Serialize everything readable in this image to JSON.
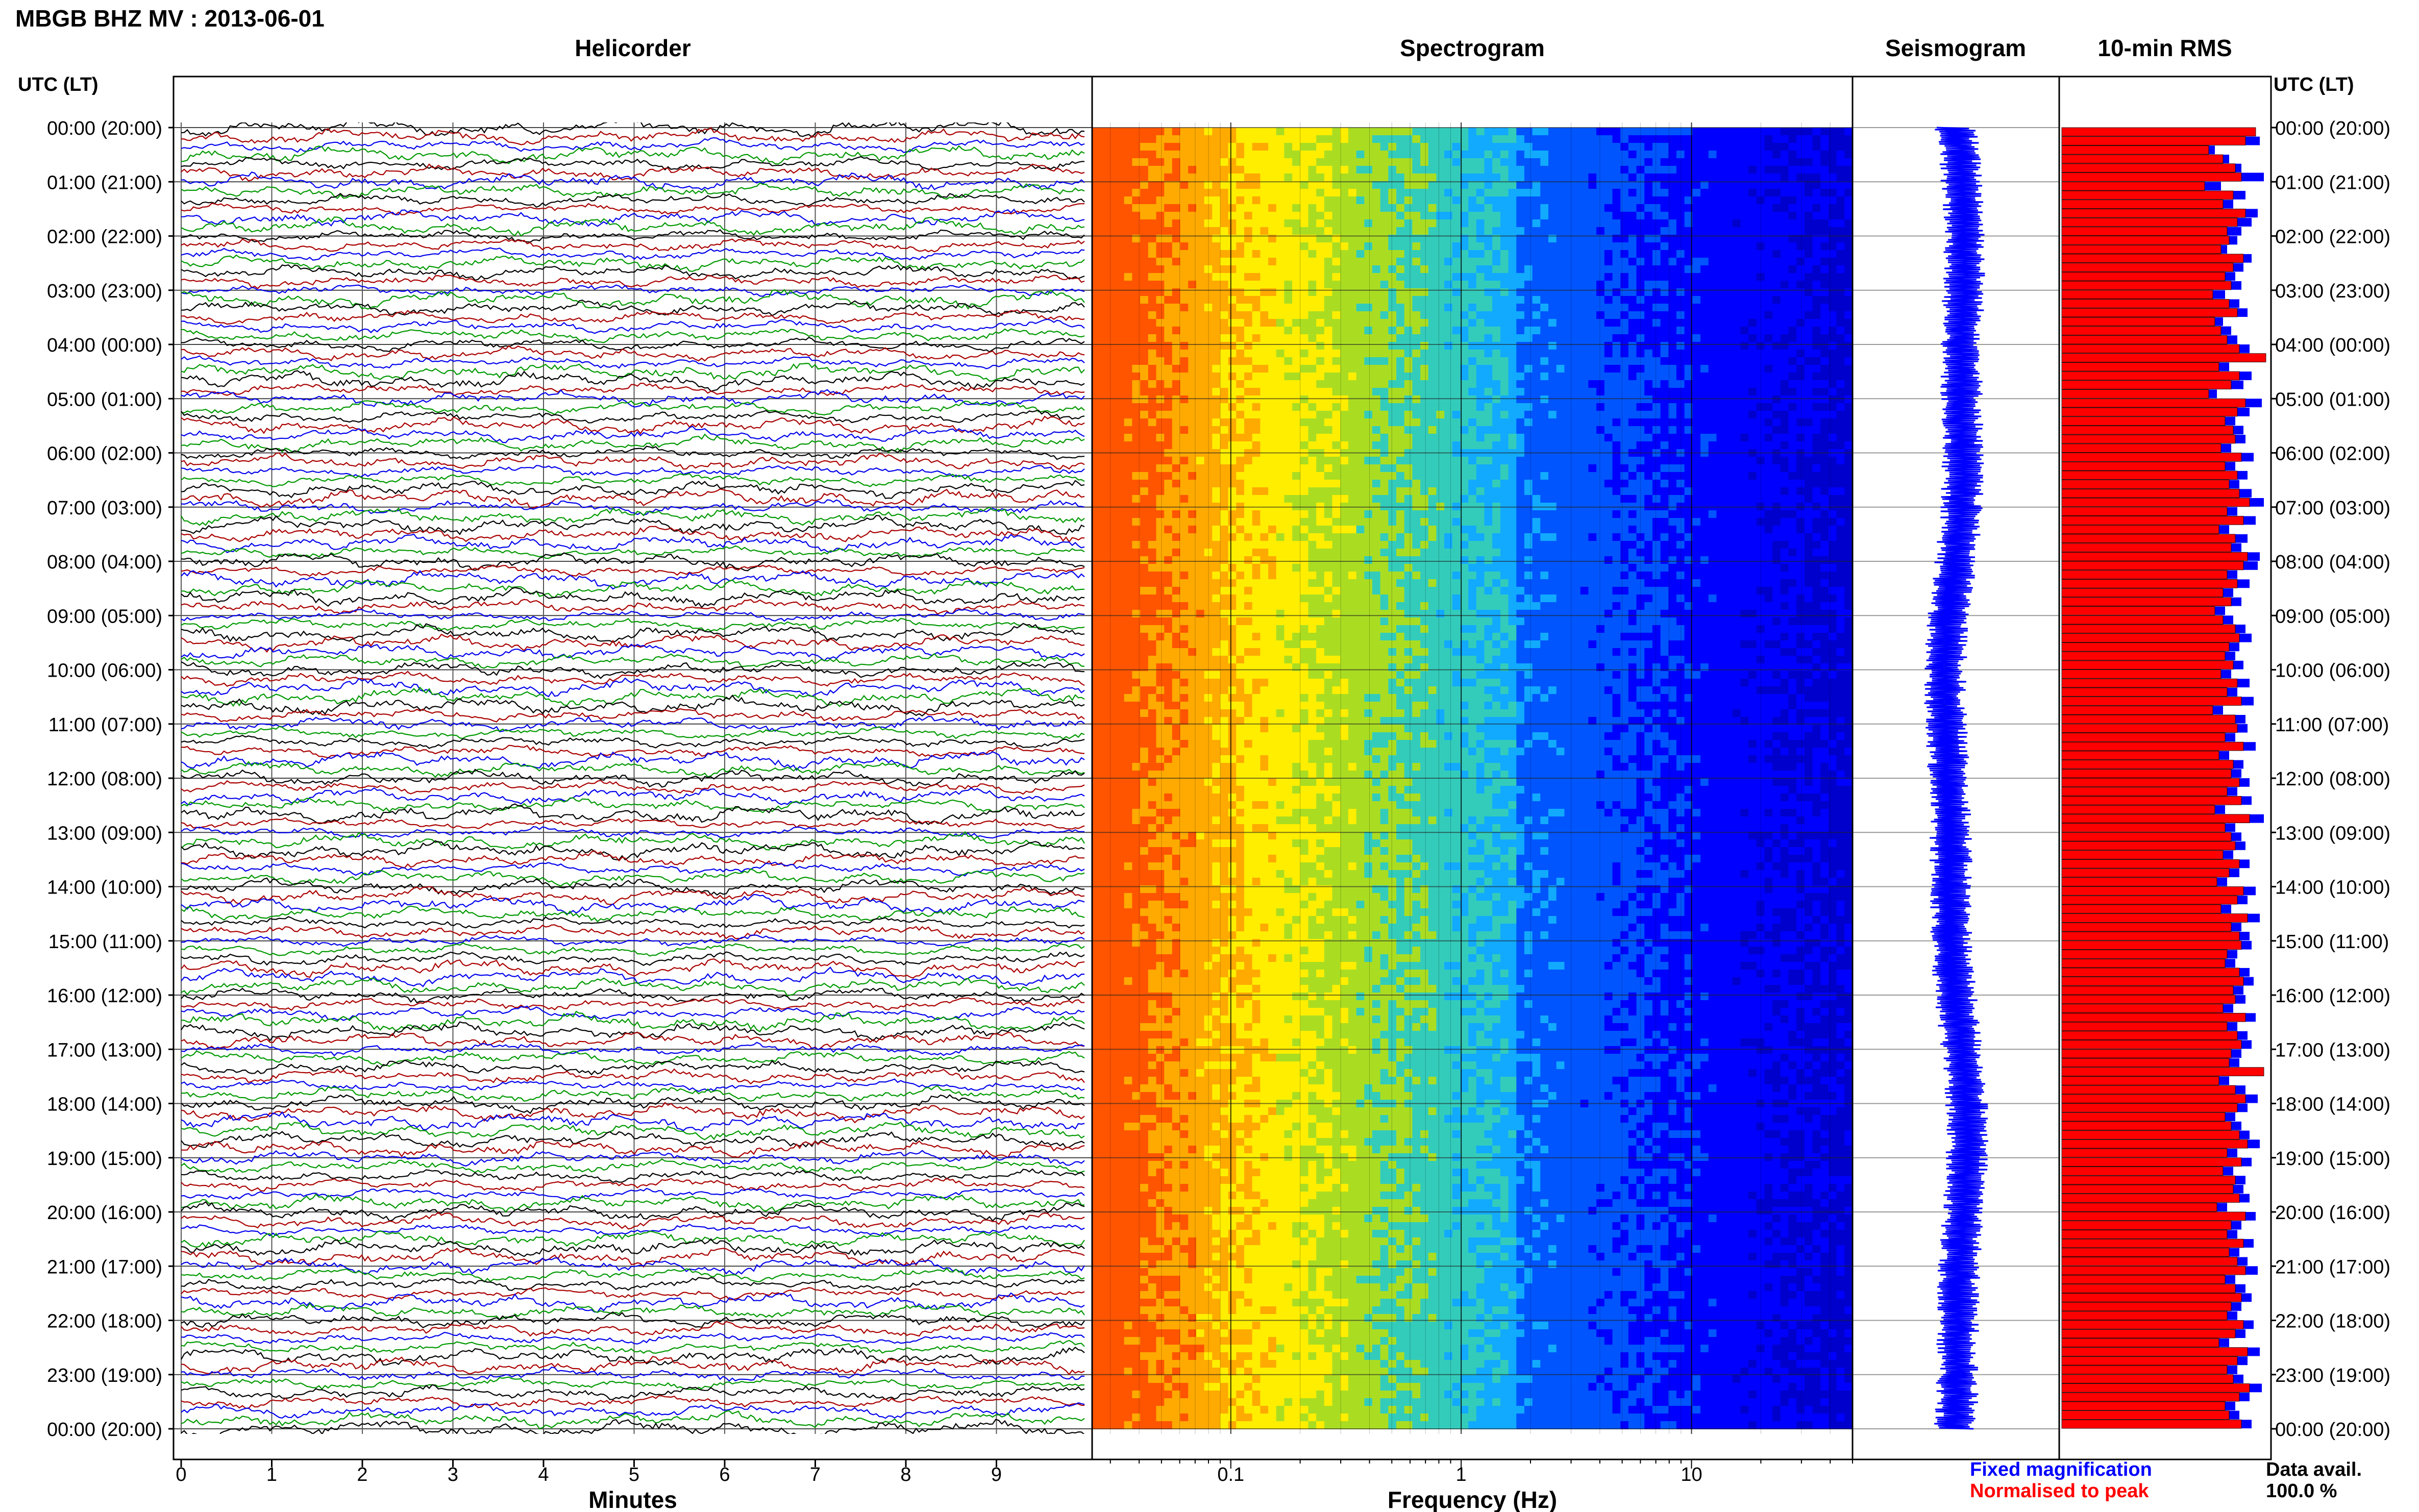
{
  "header": {
    "station_title": "MBGB BHZ MV : 2013-06-01"
  },
  "panels": {
    "helicorder_title": "Helicorder",
    "spectrogram_title": "Spectrogram",
    "seismogram_title": "Seismogram",
    "rms_title": "10-min RMS"
  },
  "time_axis": {
    "label_left": "UTC (LT)",
    "label_right": "UTC (LT)",
    "ticks": [
      "00:00 (20:00)",
      "01:00 (21:00)",
      "02:00 (22:00)",
      "03:00 (23:00)",
      "04:00 (00:00)",
      "05:00 (01:00)",
      "06:00 (02:00)",
      "07:00 (03:00)",
      "08:00 (04:00)",
      "09:00 (05:00)",
      "10:00 (06:00)",
      "11:00 (07:00)",
      "12:00 (08:00)",
      "13:00 (09:00)",
      "14:00 (10:00)",
      "15:00 (11:00)",
      "16:00 (12:00)",
      "17:00 (13:00)",
      "18:00 (14:00)",
      "19:00 (15:00)",
      "20:00 (16:00)",
      "21:00 (17:00)",
      "22:00 (18:00)",
      "23:00 (19:00)",
      "00:00 (20:00)"
    ]
  },
  "legend": {
    "fixed_label": "Fixed magnification",
    "normalised_label": "Normalised to peak",
    "fixed_color": "#0000ff",
    "normalised_color": "#ff0000",
    "avail_label": "Data avail.",
    "avail_value": "100.0 %"
  },
  "chart_data": [
    {
      "type": "line",
      "name": "helicorder",
      "title": "Helicorder",
      "xlabel": "Minutes",
      "xlim": [
        0,
        10
      ],
      "xticks": [
        0,
        1,
        2,
        3,
        4,
        5,
        6,
        7,
        8,
        9
      ],
      "ylabel": "UTC (LT)",
      "ylim_hours": [
        0,
        24
      ],
      "traces_per_hour": 6,
      "trace_colors": [
        "#000000",
        "#aa0000",
        "#0000ee",
        "#009900"
      ],
      "grid": true
    },
    {
      "type": "heatmap",
      "name": "spectrogram",
      "title": "Spectrogram",
      "xlabel": "Frequency (Hz)",
      "xscale": "log",
      "xlim": [
        0.025,
        50
      ],
      "xticks": [
        0.1,
        1,
        10
      ],
      "xtick_labels": [
        "0.1",
        "1",
        "10"
      ],
      "ylim_hours": [
        0,
        24
      ],
      "colormap": [
        "#ff5500",
        "#ffaa00",
        "#ffee00",
        "#aadd22",
        "#33ccbb",
        "#11aaff",
        "#0055ff",
        "#0000ff",
        "#0000cc"
      ],
      "grid": true
    },
    {
      "type": "line",
      "name": "seismogram",
      "title": "Seismogram",
      "ylim_hours": [
        0,
        24
      ],
      "color": "#0000ff"
    },
    {
      "type": "bar",
      "name": "rms",
      "title": "10-min RMS",
      "orientation": "horizontal",
      "ylim_hours": [
        0,
        24
      ],
      "bins_per_hour": 6,
      "series": [
        {
          "name": "Fixed magnification",
          "color": "#0000ff",
          "values": [
            0.92,
            0.97,
            0.75,
            0.82,
            0.88,
            0.99,
            0.78,
            0.9,
            0.84,
            0.96,
            0.93,
            0.88,
            0.86,
            0.81,
            0.93,
            0.89,
            0.85,
            0.88,
            0.8,
            0.87,
            0.91,
            0.79,
            0.83,
            0.86,
            0.92,
            0.95,
            0.82,
            0.93,
            0.89,
            0.76,
            0.98,
            0.92,
            0.85,
            0.89,
            0.9,
            0.83,
            0.94,
            0.85,
            0.91,
            0.87,
            0.93,
            0.99,
            0.86,
            0.95,
            0.82,
            0.91,
            0.88,
            0.97,
            0.96,
            0.86,
            0.92,
            0.84,
            0.88,
            0.8,
            0.84,
            0.9,
            0.93,
            0.87,
            0.85,
            0.89,
            0.83,
            0.92,
            0.86,
            0.94,
            0.79,
            0.9,
            0.91,
            0.85,
            0.95,
            0.82,
            0.89,
            0.88,
            0.92,
            0.86,
            0.93,
            0.8,
            0.99,
            0.85,
            0.88,
            0.9,
            0.84,
            0.92,
            0.87,
            0.81,
            0.95,
            0.91,
            0.83,
            0.97,
            0.88,
            0.92,
            0.93,
            0.86,
            0.85,
            0.92,
            0.94,
            0.89,
            0.9,
            0.84,
            0.95,
            0.86,
            0.91,
            0.93,
            0.88,
            0.87,
            0.95,
            0.82,
            0.9,
            0.96,
            0.91,
            0.85,
            0.88,
            0.92,
            0.97,
            0.86,
            0.93,
            0.84,
            0.9,
            0.89,
            0.92,
            0.81,
            0.95,
            0.88,
            0.86,
            0.94,
            0.87,
            0.91,
            0.96,
            0.85,
            0.9,
            0.93,
            0.88,
            0.86,
            0.94,
            0.9,
            0.82,
            0.97,
            0.91,
            0.86,
            0.89,
            0.98,
            0.92,
            0.85,
            0.87,
            0.93
          ]
        },
        {
          "name": "Normalised to peak",
          "color": "#ff0000",
          "values": [
            0.95,
            0.9,
            0.72,
            0.79,
            0.85,
            0.88,
            0.7,
            0.84,
            0.79,
            0.9,
            0.86,
            0.81,
            0.82,
            0.78,
            0.89,
            0.84,
            0.8,
            0.83,
            0.74,
            0.82,
            0.86,
            0.75,
            0.78,
            0.81,
            0.87,
            1.0,
            0.77,
            0.87,
            0.83,
            0.72,
            0.9,
            0.86,
            0.8,
            0.84,
            0.85,
            0.78,
            0.88,
            0.8,
            0.86,
            0.82,
            0.87,
            0.92,
            0.81,
            0.89,
            0.77,
            0.85,
            0.83,
            0.91,
            0.89,
            0.81,
            0.86,
            0.79,
            0.83,
            0.75,
            0.79,
            0.85,
            0.87,
            0.82,
            0.8,
            0.84,
            0.78,
            0.86,
            0.81,
            0.88,
            0.74,
            0.85,
            0.86,
            0.8,
            0.89,
            0.77,
            0.84,
            0.83,
            0.87,
            0.81,
            0.88,
            0.75,
            0.92,
            0.8,
            0.83,
            0.85,
            0.79,
            0.87,
            0.82,
            0.76,
            0.89,
            0.86,
            0.78,
            0.91,
            0.83,
            0.87,
            0.88,
            0.81,
            0.8,
            0.87,
            0.89,
            0.84,
            0.85,
            0.79,
            0.9,
            0.81,
            0.86,
            0.88,
            0.83,
            0.82,
            0.99,
            0.77,
            0.85,
            0.9,
            0.86,
            0.8,
            0.83,
            0.87,
            0.91,
            0.81,
            0.88,
            0.79,
            0.85,
            0.84,
            0.87,
            0.76,
            0.9,
            0.83,
            0.81,
            0.89,
            0.82,
            0.86,
            0.9,
            0.8,
            0.85,
            0.88,
            0.83,
            0.81,
            0.89,
            0.85,
            0.77,
            0.91,
            0.86,
            0.81,
            0.84,
            0.92,
            0.87,
            0.8,
            0.82,
            0.88
          ]
        }
      ]
    }
  ]
}
